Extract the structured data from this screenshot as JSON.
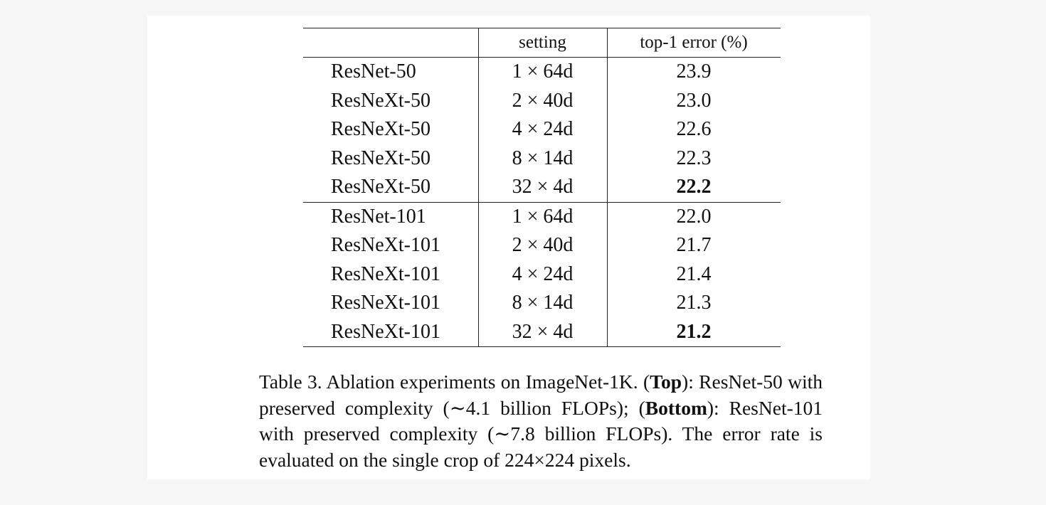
{
  "table": {
    "headers": [
      "",
      "setting",
      "top-1 error (%)"
    ],
    "top_rows": [
      {
        "model": "ResNet-50",
        "setting": "1 × 64d",
        "error": "23.9",
        "bold": false
      },
      {
        "model": "ResNeXt-50",
        "setting": "2 × 40d",
        "error": "23.0",
        "bold": false
      },
      {
        "model": "ResNeXt-50",
        "setting": "4 × 24d",
        "error": "22.6",
        "bold": false
      },
      {
        "model": "ResNeXt-50",
        "setting": "8 × 14d",
        "error": "22.3",
        "bold": false
      },
      {
        "model": "ResNeXt-50",
        "setting": "32 × 4d",
        "error": "22.2",
        "bold": true
      }
    ],
    "bottom_rows": [
      {
        "model": "ResNet-101",
        "setting": "1 × 64d",
        "error": "22.0",
        "bold": false
      },
      {
        "model": "ResNeXt-101",
        "setting": "2 × 40d",
        "error": "21.7",
        "bold": false
      },
      {
        "model": "ResNeXt-101",
        "setting": "4 × 24d",
        "error": "21.4",
        "bold": false
      },
      {
        "model": "ResNeXt-101",
        "setting": "8 × 14d",
        "error": "21.3",
        "bold": false
      },
      {
        "model": "ResNeXt-101",
        "setting": "32 × 4d",
        "error": "21.2",
        "bold": true
      }
    ]
  },
  "caption": {
    "part1": "Table 3. Ablation experiments on ImageNet-1K. (",
    "bold1": "Top",
    "part2": "): ResNet-50 with preserved complexity (∼4.1 billion FLOPs); (",
    "bold2": "Bottom",
    "part3": "): ResNet-101 with preserved complexity (∼7.8 billion FLOPs). The error rate is evaluated on the single crop of 224×224 pixels."
  }
}
